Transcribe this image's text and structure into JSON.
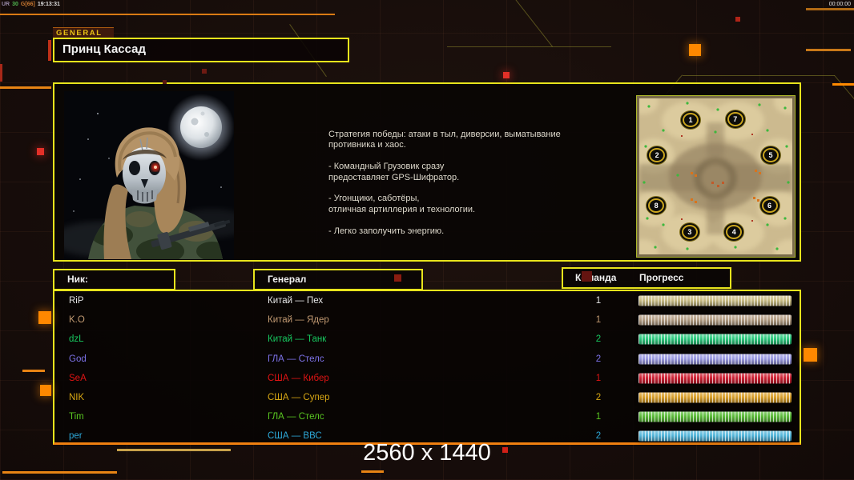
{
  "hud": {
    "debug_segments": [
      {
        "text": "UR",
        "color": "#9a8aa8"
      },
      {
        "text": "30",
        "color": "#50b850"
      },
      {
        "text": "G[66]",
        "color": "#c87830"
      },
      {
        "text": "19:13:31",
        "color": "#e0e0e0"
      }
    ],
    "match_timer": "00:00:00"
  },
  "header": {
    "faction_tab": "GENERAL",
    "general_name": "Принц Кассад"
  },
  "briefing": {
    "strategy_text": "Стратегия победы: атаки в тыл, диверсии, выматывание\n противника и хаос.\n\n- Командный Грузовик сразу\nпредоставляет GPS-Шифратор.\n\n- Угонщики, саботёры,\nотличная артиллерия и технологии.\n\n- Легко заполучить энергию."
  },
  "map": {
    "spawn_points": [
      {
        "number": "1",
        "x": 33.5,
        "y": 13.8
      },
      {
        "number": "7",
        "x": 62.7,
        "y": 13.5
      },
      {
        "number": "2",
        "x": 11.6,
        "y": 36.5
      },
      {
        "number": "5",
        "x": 85.9,
        "y": 36.5
      },
      {
        "number": "8",
        "x": 11.1,
        "y": 68.9
      },
      {
        "number": "6",
        "x": 85.1,
        "y": 68.9
      },
      {
        "number": "3",
        "x": 32.9,
        "y": 85.4
      },
      {
        "number": "4",
        "x": 61.9,
        "y": 85.4
      }
    ]
  },
  "players": {
    "headers": {
      "nick": "Ник:",
      "general": "Генерал",
      "team": "Команда",
      "progress": "Прогресс"
    },
    "rows": [
      {
        "nick": "RiP",
        "general": "Китай — Пех",
        "team": "1",
        "color": "#e6e6e6",
        "bar_color": "#c9bc84"
      },
      {
        "nick": "K.O",
        "general": "Китай — Ядер",
        "team": "1",
        "color": "#c29a72",
        "bar_color": "#b49e84"
      },
      {
        "nick": "dzL",
        "general": "Китай — Танк",
        "team": "2",
        "color": "#17c75f",
        "bar_color": "#2dc97e"
      },
      {
        "nick": "God",
        "general": "ГЛА — Стелс",
        "team": "2",
        "color": "#7d72e8",
        "bar_color": "#9a99e0"
      },
      {
        "nick": "SeA",
        "general": "США — Кибер",
        "team": "1",
        "color": "#e01414",
        "bar_color": "#ce2133"
      },
      {
        "nick": "NIK",
        "general": "США — Супер",
        "team": "2",
        "color": "#d8a714",
        "bar_color": "#d99f2b"
      },
      {
        "nick": "Tim",
        "general": "ГЛА — Стелс",
        "team": "1",
        "color": "#59c621",
        "bar_color": "#5bbb39"
      },
      {
        "nick": "per",
        "general": "США — ВВС",
        "team": "2",
        "color": "#2da8d8",
        "bar_color": "#54b6da"
      }
    ]
  },
  "footer": {
    "resolution_label": "2560 x 1440"
  }
}
